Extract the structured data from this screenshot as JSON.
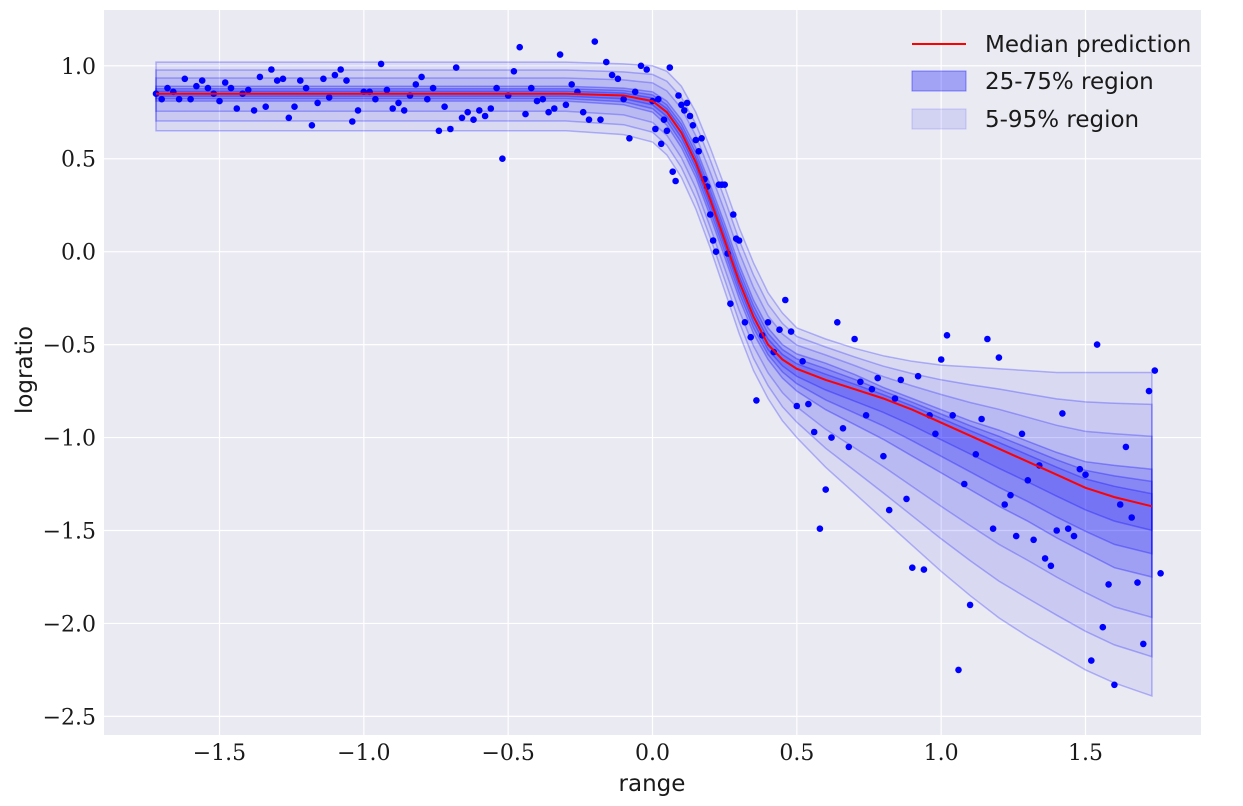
{
  "chart_data": {
    "type": "scatter",
    "title": "",
    "xlabel": "range",
    "ylabel": "logratio",
    "xlim": [
      -1.9,
      1.9
    ],
    "ylim": [
      -2.6,
      1.3
    ],
    "xticks": [
      -1.5,
      -1.0,
      -0.5,
      0.0,
      0.5,
      1.0,
      1.5
    ],
    "yticks": [
      -2.5,
      -2.0,
      -1.5,
      -1.0,
      -0.5,
      0.0,
      0.5,
      1.0
    ],
    "xtick_labels": [
      "−1.5",
      "−1.0",
      "−0.5",
      "0.0",
      "0.5",
      "1.0",
      "1.5"
    ],
    "ytick_labels": [
      "−2.5",
      "−2.0",
      "−1.5",
      "−1.0",
      "−0.5",
      "0.0",
      "0.5",
      "1.0"
    ],
    "grid": true,
    "legend_position": "top-right",
    "legend": [
      {
        "label": "Median prediction",
        "kind": "line",
        "color": "#ff0000"
      },
      {
        "label": "25-75% region",
        "kind": "patch",
        "color": "#0000ff",
        "alpha": 0.3
      },
      {
        "label": "5-95% region",
        "kind": "patch",
        "color": "#0000ff",
        "alpha": 0.1
      }
    ],
    "colors": {
      "median": "#ff0000",
      "points": "#0000ff",
      "band": "#0000ff",
      "background": "#eaeaf2"
    },
    "x_grid": [
      -1.72,
      -1.2,
      -0.7,
      -0.3,
      -0.1,
      0.0,
      0.05,
      0.1,
      0.15,
      0.2,
      0.25,
      0.3,
      0.35,
      0.4,
      0.45,
      0.5,
      0.6,
      0.7,
      0.8,
      0.9,
      1.0,
      1.1,
      1.2,
      1.3,
      1.4,
      1.5,
      1.6,
      1.73
    ],
    "median": [
      0.85,
      0.85,
      0.85,
      0.85,
      0.84,
      0.81,
      0.75,
      0.64,
      0.48,
      0.28,
      0.06,
      -0.16,
      -0.35,
      -0.5,
      -0.58,
      -0.63,
      -0.69,
      -0.74,
      -0.79,
      -0.85,
      -0.92,
      -0.99,
      -1.06,
      -1.13,
      -1.2,
      -1.27,
      -1.32,
      -1.37
    ],
    "q25": [
      0.81,
      0.81,
      0.81,
      0.81,
      0.79,
      0.75,
      0.68,
      0.56,
      0.4,
      0.19,
      -0.03,
      -0.25,
      -0.44,
      -0.58,
      -0.68,
      -0.75,
      -0.85,
      -0.93,
      -1.01,
      -1.1,
      -1.19,
      -1.28,
      -1.37,
      -1.45,
      -1.54,
      -1.62,
      -1.7,
      -1.75
    ],
    "q75": [
      0.89,
      0.89,
      0.89,
      0.89,
      0.88,
      0.86,
      0.81,
      0.71,
      0.56,
      0.36,
      0.15,
      -0.07,
      -0.26,
      -0.41,
      -0.5,
      -0.55,
      -0.6,
      -0.66,
      -0.73,
      -0.79,
      -0.85,
      -0.91,
      -0.96,
      -1.02,
      -1.08,
      -1.13,
      -1.15,
      -1.17
    ],
    "q05": [
      0.65,
      0.65,
      0.65,
      0.65,
      0.63,
      0.59,
      0.52,
      0.4,
      0.23,
      0.02,
      -0.21,
      -0.44,
      -0.64,
      -0.79,
      -0.91,
      -1.0,
      -1.16,
      -1.3,
      -1.44,
      -1.58,
      -1.72,
      -1.85,
      -1.97,
      -2.07,
      -2.16,
      -2.25,
      -2.32,
      -2.39
    ],
    "q95": [
      1.02,
      1.02,
      1.02,
      1.02,
      1.01,
      1.0,
      0.97,
      0.89,
      0.75,
      0.56,
      0.35,
      0.13,
      -0.06,
      -0.22,
      -0.33,
      -0.41,
      -0.47,
      -0.52,
      -0.56,
      -0.59,
      -0.61,
      -0.62,
      -0.63,
      -0.64,
      -0.65,
      -0.65,
      -0.65,
      -0.65
    ],
    "points": [
      [
        -1.72,
        0.85
      ],
      [
        -1.7,
        0.82
      ],
      [
        -1.68,
        0.88
      ],
      [
        -1.66,
        0.86
      ],
      [
        -1.64,
        0.82
      ],
      [
        -1.62,
        0.93
      ],
      [
        -1.6,
        0.82
      ],
      [
        -1.58,
        0.89
      ],
      [
        -1.56,
        0.92
      ],
      [
        -1.54,
        0.88
      ],
      [
        -1.52,
        0.85
      ],
      [
        -1.5,
        0.81
      ],
      [
        -1.48,
        0.91
      ],
      [
        -1.46,
        0.88
      ],
      [
        -1.44,
        0.77
      ],
      [
        -1.42,
        0.85
      ],
      [
        -1.4,
        0.87
      ],
      [
        -1.38,
        0.76
      ],
      [
        -1.36,
        0.94
      ],
      [
        -1.34,
        0.78
      ],
      [
        -1.32,
        0.98
      ],
      [
        -1.3,
        0.92
      ],
      [
        -1.28,
        0.93
      ],
      [
        -1.26,
        0.72
      ],
      [
        -1.24,
        0.78
      ],
      [
        -1.22,
        0.92
      ],
      [
        -1.2,
        0.88
      ],
      [
        -1.18,
        0.68
      ],
      [
        -1.16,
        0.8
      ],
      [
        -1.14,
        0.93
      ],
      [
        -1.12,
        0.83
      ],
      [
        -1.1,
        0.95
      ],
      [
        -1.08,
        0.98
      ],
      [
        -1.06,
        0.92
      ],
      [
        -1.04,
        0.7
      ],
      [
        -1.02,
        0.76
      ],
      [
        -1.0,
        0.86
      ],
      [
        -0.98,
        0.86
      ],
      [
        -0.96,
        0.82
      ],
      [
        -0.94,
        1.01
      ],
      [
        -0.92,
        0.87
      ],
      [
        -0.9,
        0.77
      ],
      [
        -0.88,
        0.8
      ],
      [
        -0.86,
        0.76
      ],
      [
        -0.84,
        0.84
      ],
      [
        -0.82,
        0.9
      ],
      [
        -0.8,
        0.94
      ],
      [
        -0.78,
        0.82
      ],
      [
        -0.76,
        0.88
      ],
      [
        -0.74,
        0.65
      ],
      [
        -0.72,
        0.78
      ],
      [
        -0.7,
        0.66
      ],
      [
        -0.68,
        0.99
      ],
      [
        -0.66,
        0.72
      ],
      [
        -0.64,
        0.75
      ],
      [
        -0.62,
        0.71
      ],
      [
        -0.6,
        0.76
      ],
      [
        -0.58,
        0.73
      ],
      [
        -0.56,
        0.77
      ],
      [
        -0.54,
        0.88
      ],
      [
        -0.52,
        0.5
      ],
      [
        -0.5,
        0.84
      ],
      [
        -0.48,
        0.97
      ],
      [
        -0.46,
        1.1
      ],
      [
        -0.44,
        0.74
      ],
      [
        -0.42,
        0.88
      ],
      [
        -0.4,
        0.81
      ],
      [
        -0.38,
        0.82
      ],
      [
        -0.36,
        0.75
      ],
      [
        -0.34,
        0.77
      ],
      [
        -0.32,
        1.06
      ],
      [
        -0.3,
        0.79
      ],
      [
        -0.28,
        0.9
      ],
      [
        -0.26,
        0.86
      ],
      [
        -0.24,
        0.75
      ],
      [
        -0.22,
        0.71
      ],
      [
        -0.2,
        1.13
      ],
      [
        -0.18,
        0.71
      ],
      [
        -0.16,
        1.02
      ],
      [
        -0.14,
        0.95
      ],
      [
        -0.12,
        0.93
      ],
      [
        -0.1,
        0.82
      ],
      [
        -0.08,
        0.61
      ],
      [
        -0.06,
        0.86
      ],
      [
        -0.04,
        1.0
      ],
      [
        -0.02,
        0.98
      ],
      [
        0.0,
        0.81
      ],
      [
        0.01,
        0.66
      ],
      [
        0.02,
        0.82
      ],
      [
        0.03,
        0.58
      ],
      [
        0.04,
        0.71
      ],
      [
        0.05,
        0.65
      ],
      [
        0.06,
        0.99
      ],
      [
        0.07,
        0.43
      ],
      [
        0.08,
        0.38
      ],
      [
        0.09,
        0.84
      ],
      [
        0.1,
        0.79
      ],
      [
        0.11,
        0.76
      ],
      [
        0.12,
        0.8
      ],
      [
        0.13,
        0.73
      ],
      [
        0.14,
        0.68
      ],
      [
        0.15,
        0.6
      ],
      [
        0.16,
        0.54
      ],
      [
        0.17,
        0.61
      ],
      [
        0.18,
        0.39
      ],
      [
        0.19,
        0.35
      ],
      [
        0.2,
        0.2
      ],
      [
        0.21,
        0.06
      ],
      [
        0.22,
        0.0
      ],
      [
        0.23,
        0.36
      ],
      [
        0.24,
        0.36
      ],
      [
        0.25,
        0.36
      ],
      [
        0.26,
        -0.01
      ],
      [
        0.27,
        -0.28
      ],
      [
        0.28,
        0.2
      ],
      [
        0.29,
        0.07
      ],
      [
        0.3,
        0.06
      ],
      [
        0.32,
        -0.38
      ],
      [
        0.34,
        -0.46
      ],
      [
        0.36,
        -0.8
      ],
      [
        0.38,
        -0.45
      ],
      [
        0.4,
        -0.38
      ],
      [
        0.42,
        -0.54
      ],
      [
        0.44,
        -0.42
      ],
      [
        0.46,
        -0.26
      ],
      [
        0.48,
        -0.43
      ],
      [
        0.5,
        -0.83
      ],
      [
        0.52,
        -0.59
      ],
      [
        0.54,
        -0.82
      ],
      [
        0.56,
        -0.97
      ],
      [
        0.58,
        -1.49
      ],
      [
        0.6,
        -1.28
      ],
      [
        0.62,
        -1.0
      ],
      [
        0.64,
        -0.38
      ],
      [
        0.66,
        -0.95
      ],
      [
        0.68,
        -1.05
      ],
      [
        0.7,
        -0.47
      ],
      [
        0.72,
        -0.7
      ],
      [
        0.74,
        -0.88
      ],
      [
        0.76,
        -0.74
      ],
      [
        0.78,
        -0.68
      ],
      [
        0.8,
        -1.1
      ],
      [
        0.82,
        -1.39
      ],
      [
        0.84,
        -0.79
      ],
      [
        0.86,
        -0.69
      ],
      [
        0.88,
        -1.33
      ],
      [
        0.9,
        -1.7
      ],
      [
        0.92,
        -0.67
      ],
      [
        0.94,
        -1.71
      ],
      [
        0.96,
        -0.88
      ],
      [
        0.98,
        -0.98
      ],
      [
        1.0,
        -0.58
      ],
      [
        1.02,
        -0.45
      ],
      [
        1.04,
        -0.88
      ],
      [
        1.06,
        -2.25
      ],
      [
        1.08,
        -1.25
      ],
      [
        1.1,
        -1.9
      ],
      [
        1.12,
        -1.09
      ],
      [
        1.14,
        -0.9
      ],
      [
        1.16,
        -0.47
      ],
      [
        1.18,
        -1.49
      ],
      [
        1.2,
        -0.57
      ],
      [
        1.22,
        -1.36
      ],
      [
        1.24,
        -1.31
      ],
      [
        1.26,
        -1.53
      ],
      [
        1.28,
        -0.98
      ],
      [
        1.3,
        -1.23
      ],
      [
        1.32,
        -1.55
      ],
      [
        1.34,
        -1.15
      ],
      [
        1.36,
        -1.65
      ],
      [
        1.38,
        -1.69
      ],
      [
        1.4,
        -1.5
      ],
      [
        1.42,
        -0.87
      ],
      [
        1.44,
        -1.49
      ],
      [
        1.46,
        -1.53
      ],
      [
        1.48,
        -1.17
      ],
      [
        1.5,
        -1.2
      ],
      [
        1.52,
        -2.2
      ],
      [
        1.54,
        -0.5
      ],
      [
        1.56,
        -2.02
      ],
      [
        1.58,
        -1.79
      ],
      [
        1.6,
        -2.33
      ],
      [
        1.62,
        -1.36
      ],
      [
        1.64,
        -1.05
      ],
      [
        1.66,
        -1.43
      ],
      [
        1.68,
        -1.78
      ],
      [
        1.7,
        -2.11
      ],
      [
        1.72,
        -0.75
      ],
      [
        1.74,
        -0.64
      ],
      [
        1.76,
        -1.73
      ]
    ]
  }
}
